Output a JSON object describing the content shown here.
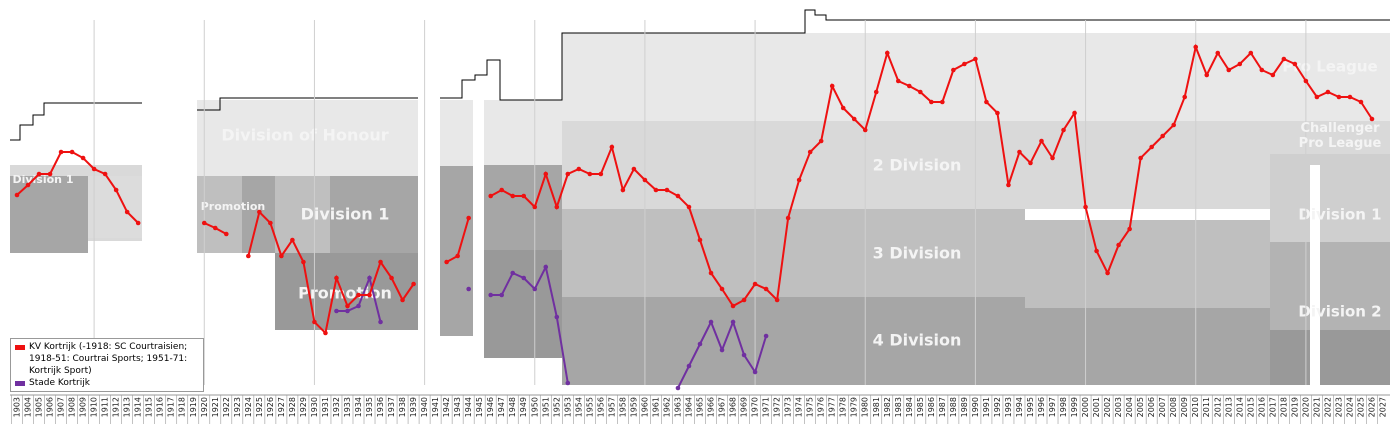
{
  "chart_data": {
    "type": "line",
    "x": [
      1903,
      1904,
      1905,
      1906,
      1907,
      1908,
      1909,
      1910,
      1911,
      1912,
      1913,
      1914,
      1915,
      1916,
      1917,
      1918,
      1919,
      1920,
      1921,
      1922,
      1923,
      1924,
      1925,
      1926,
      1927,
      1928,
      1929,
      1930,
      1931,
      1932,
      1933,
      1934,
      1935,
      1936,
      1937,
      1938,
      1939,
      1940,
      1941,
      1942,
      1943,
      1944,
      1945,
      1946,
      1947,
      1948,
      1949,
      1950,
      1951,
      1952,
      1953,
      1954,
      1955,
      1956,
      1957,
      1958,
      1959,
      1960,
      1961,
      1962,
      1963,
      1964,
      1965,
      1966,
      1967,
      1968,
      1969,
      1970,
      1971,
      1972,
      1973,
      1974,
      1975,
      1976,
      1977,
      1978,
      1979,
      1980,
      1981,
      1982,
      1983,
      1984,
      1985,
      1986,
      1987,
      1988,
      1989,
      1990,
      1991,
      1992,
      1993,
      1994,
      1995,
      1996,
      1997,
      1998,
      1999,
      2000,
      2001,
      2002,
      2003,
      2004,
      2005,
      2006,
      2007,
      2008,
      2009,
      2010,
      2011,
      2012,
      2013,
      2014,
      2015,
      2016,
      2017,
      2018,
      2019,
      2020,
      2021,
      2022,
      2023,
      2024,
      2025,
      2026,
      2027
    ],
    "xlim": [
      1903,
      2027
    ],
    "ylim": [
      0,
      76
    ],
    "y_inverted": true,
    "xgrid_every": 10,
    "legend": "bottom-left",
    "series": [
      {
        "name": "KV Kortrijk (-1918: SC Courtraisien; 1918-51: Courtrai Sports; 1951-71: Kortrijk Sport)",
        "color": "#ee1111",
        "values": [
          37,
          35,
          32.8,
          32.8,
          28.4,
          28.4,
          29.6,
          31.8,
          32.8,
          36,
          40.4,
          42.6,
          null,
          null,
          null,
          null,
          null,
          42.6,
          43.6,
          44.8,
          null,
          49.2,
          40.4,
          42.6,
          49.2,
          46,
          50.4,
          62.4,
          64.6,
          53.6,
          59.2,
          57,
          57,
          50.4,
          53.6,
          58,
          54.8,
          null,
          null,
          50.4,
          49.2,
          41.6,
          null,
          37.2,
          36,
          37.2,
          37.2,
          39.4,
          32.8,
          39.4,
          32.8,
          31.8,
          32.8,
          32.8,
          27.4,
          36,
          31.8,
          34,
          36,
          36,
          37.2,
          39.4,
          46,
          52.6,
          55.8,
          59.2,
          58,
          54.8,
          55.8,
          58,
          41.6,
          34,
          28.4,
          26.2,
          15.2,
          19.6,
          21.8,
          24,
          16.4,
          8.6,
          14.2,
          15.2,
          16.4,
          18.4,
          18.4,
          12,
          10.8,
          9.8,
          18.4,
          20.6,
          35,
          28.4,
          30.6,
          26.2,
          29.6,
          24,
          20.6,
          39.4,
          48.2,
          52.6,
          47,
          43.8,
          29.6,
          27.4,
          25.2,
          23,
          17.4,
          7.4,
          13,
          8.6,
          12,
          10.8,
          8.6,
          12,
          13,
          9.8,
          10.8,
          14.2,
          17.4,
          16.4,
          17.4,
          17.4,
          18.4,
          21.8,
          null
        ]
      },
      {
        "name": "Stade Kortrijk",
        "color": "#7030a0",
        "values": [
          null,
          null,
          null,
          null,
          null,
          null,
          null,
          null,
          null,
          null,
          null,
          null,
          null,
          null,
          null,
          null,
          null,
          null,
          null,
          null,
          null,
          null,
          null,
          null,
          null,
          null,
          null,
          null,
          null,
          60.2,
          60.2,
          59.2,
          53.6,
          62.4,
          null,
          null,
          null,
          null,
          null,
          null,
          null,
          55.8,
          null,
          57,
          57,
          52.6,
          53.6,
          55.8,
          51.4,
          61.4,
          74.6,
          null,
          null,
          null,
          null,
          null,
          null,
          null,
          null,
          null,
          75.6,
          71.2,
          66.8,
          62.4,
          68,
          62.4,
          69,
          72.4,
          65.2,
          null,
          null,
          null,
          null,
          null,
          null,
          null,
          null,
          null,
          null,
          null,
          null,
          null,
          null,
          null,
          null,
          null,
          null,
          null,
          null,
          null,
          null,
          null,
          null,
          null,
          null,
          null,
          null,
          null,
          null,
          null,
          null,
          null,
          null,
          null,
          null,
          null,
          null,
          null,
          null,
          null,
          null,
          null,
          null,
          null,
          null,
          null,
          null,
          null,
          null,
          null,
          null,
          null,
          null,
          null,
          null
        ]
      }
    ],
    "division_labels": [
      "Division 1",
      "Promotion",
      "Division of Honour",
      "Division 1",
      "Promotion",
      "2 Division",
      "3 Division",
      "4 Division",
      "Pro League",
      "Challenger Pro League",
      "Division 1",
      "Division 2"
    ]
  }
}
